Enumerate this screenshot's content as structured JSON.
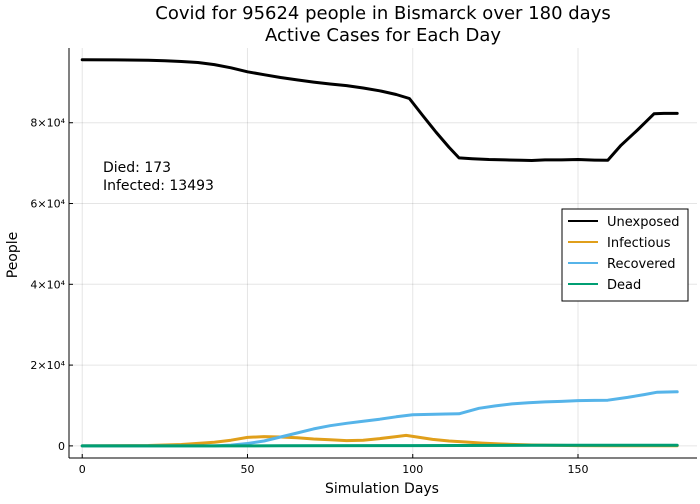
{
  "chart_data": {
    "type": "line",
    "title_line1": "Covid for 95624 people in Bismarck over 180 days",
    "title_line2": "Active Cases for Each Day",
    "xlabel": "Simulation Days",
    "ylabel": "People",
    "xlim": [
      -4,
      186
    ],
    "ylim": [
      -3000,
      98500
    ],
    "x_ticks": [
      0,
      50,
      100,
      150
    ],
    "x_tick_labels": [
      "0",
      "50",
      "100",
      "150"
    ],
    "y_ticks": [
      0,
      20000,
      40000,
      60000,
      80000
    ],
    "y_tick_labels": [
      "0",
      "2×10⁴",
      "4×10⁴",
      "6×10⁴",
      "8×10⁴"
    ],
    "grid": true,
    "legend_position": "right",
    "annotations": [
      "Died: 173",
      "Infected: 13493"
    ],
    "series": [
      {
        "name": "Unexposed",
        "color": "#000000",
        "points": [
          [
            0,
            95600
          ],
          [
            10,
            95550
          ],
          [
            20,
            95450
          ],
          [
            25,
            95350
          ],
          [
            30,
            95150
          ],
          [
            35,
            94900
          ],
          [
            40,
            94400
          ],
          [
            45,
            93600
          ],
          [
            50,
            92600
          ],
          [
            55,
            91900
          ],
          [
            60,
            91200
          ],
          [
            65,
            90600
          ],
          [
            70,
            90050
          ],
          [
            75,
            89600
          ],
          [
            80,
            89200
          ],
          [
            85,
            88600
          ],
          [
            90,
            87900
          ],
          [
            95,
            87000
          ],
          [
            99,
            86000
          ],
          [
            103,
            81800
          ],
          [
            107,
            77700
          ],
          [
            111,
            73900
          ],
          [
            114,
            71300
          ],
          [
            118,
            71100
          ],
          [
            123,
            70900
          ],
          [
            128,
            70800
          ],
          [
            133,
            70700
          ],
          [
            136,
            70650
          ],
          [
            140,
            70800
          ],
          [
            145,
            70800
          ],
          [
            150,
            70900
          ],
          [
            155,
            70750
          ],
          [
            159,
            70700
          ],
          [
            163,
            74400
          ],
          [
            168,
            78200
          ],
          [
            173,
            82200
          ],
          [
            176,
            82300
          ],
          [
            180,
            82300
          ]
        ]
      },
      {
        "name": "Infectious",
        "color": "#e09f1b",
        "points": [
          [
            0,
            0
          ],
          [
            20,
            100
          ],
          [
            30,
            350
          ],
          [
            40,
            900
          ],
          [
            45,
            1400
          ],
          [
            50,
            2100
          ],
          [
            55,
            2300
          ],
          [
            60,
            2200
          ],
          [
            65,
            2000
          ],
          [
            70,
            1700
          ],
          [
            75,
            1500
          ],
          [
            80,
            1300
          ],
          [
            85,
            1400
          ],
          [
            90,
            1800
          ],
          [
            95,
            2300
          ],
          [
            98,
            2600
          ],
          [
            102,
            2100
          ],
          [
            106,
            1600
          ],
          [
            111,
            1200
          ],
          [
            116,
            950
          ],
          [
            121,
            700
          ],
          [
            126,
            500
          ],
          [
            131,
            330
          ],
          [
            136,
            220
          ],
          [
            141,
            140
          ],
          [
            150,
            80
          ],
          [
            160,
            40
          ],
          [
            170,
            20
          ],
          [
            180,
            10
          ]
        ]
      },
      {
        "name": "Recovered",
        "color": "#56b4e9",
        "points": [
          [
            0,
            0
          ],
          [
            40,
            0
          ],
          [
            45,
            200
          ],
          [
            50,
            600
          ],
          [
            55,
            1200
          ],
          [
            60,
            2200
          ],
          [
            65,
            3200
          ],
          [
            70,
            4200
          ],
          [
            75,
            5000
          ],
          [
            80,
            5600
          ],
          [
            85,
            6100
          ],
          [
            90,
            6600
          ],
          [
            95,
            7200
          ],
          [
            100,
            7700
          ],
          [
            105,
            7800
          ],
          [
            110,
            7900
          ],
          [
            114,
            7950
          ],
          [
            120,
            9300
          ],
          [
            125,
            9900
          ],
          [
            130,
            10400
          ],
          [
            135,
            10700
          ],
          [
            140,
            10900
          ],
          [
            145,
            11000
          ],
          [
            150,
            11200
          ],
          [
            155,
            11250
          ],
          [
            159,
            11300
          ],
          [
            165,
            12000
          ],
          [
            170,
            12700
          ],
          [
            174,
            13300
          ],
          [
            180,
            13400
          ]
        ]
      },
      {
        "name": "Dead",
        "color": "#009e73",
        "points": [
          [
            0,
            0
          ],
          [
            60,
            20
          ],
          [
            100,
            80
          ],
          [
            140,
            150
          ],
          [
            180,
            173
          ]
        ]
      }
    ]
  }
}
